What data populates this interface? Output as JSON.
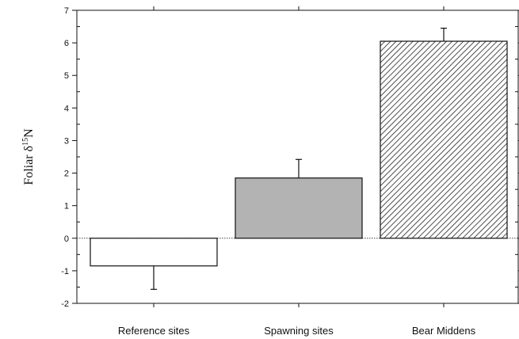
{
  "chart_data": {
    "type": "bar",
    "categories": [
      "Reference sites",
      "Spawning sites",
      "Bear Middens"
    ],
    "values": [
      -0.85,
      1.85,
      6.05
    ],
    "error_upper": [
      -1.57,
      2.42,
      6.45
    ],
    "fills": [
      "#ffffff",
      "#b3b3b3",
      "hatch"
    ],
    "ylim": [
      -2,
      7
    ],
    "yticks": [
      -2,
      -1,
      0,
      1,
      2,
      3,
      4,
      5,
      6,
      7
    ],
    "ytick_labels": [
      "-2",
      "-1",
      "0",
      "1",
      "2",
      "3",
      "4",
      "5",
      "6",
      "7"
    ],
    "ylabel": {
      "prefix": "Foliar δ",
      "superscript": "15",
      "suffix": "N"
    },
    "xlabel": "",
    "title": "",
    "grid": false,
    "zero_line": "dotted"
  }
}
